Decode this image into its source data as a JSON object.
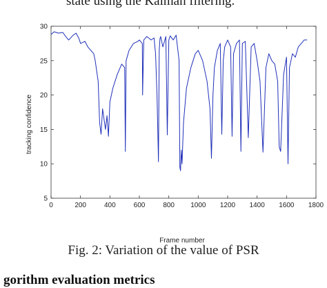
{
  "top_text": "state using the Kalman filtering.",
  "caption": "Fig. 2: Variation of the value of PSR",
  "bottom_text": "gorithm evaluation metrics",
  "chart_data": {
    "type": "line",
    "title": "",
    "xlabel": "Frame number",
    "ylabel": "tracking confidence",
    "xlim": [
      0,
      1800
    ],
    "ylim": [
      5,
      30
    ],
    "xticks": [
      0,
      200,
      400,
      600,
      800,
      1000,
      1200,
      1400,
      1600,
      1800
    ],
    "yticks": [
      5,
      10,
      15,
      20,
      25,
      30
    ],
    "line_color": "#1f2fb8",
    "series": [
      {
        "x": [
          0,
          20,
          50,
          80,
          100,
          120,
          150,
          170,
          190,
          200,
          230,
          250,
          270,
          290,
          300,
          320,
          330,
          340,
          350,
          360,
          370,
          380,
          390,
          400,
          420,
          450,
          480,
          500,
          505,
          510,
          530,
          560,
          590,
          600,
          620,
          622,
          630,
          650,
          680,
          700,
          710,
          720,
          730,
          735,
          740,
          745,
          760,
          780,
          790,
          800,
          810,
          830,
          850,
          870,
          875,
          880,
          885,
          890,
          900,
          920,
          950,
          980,
          1000,
          1030,
          1060,
          1080,
          1090,
          1100,
          1110,
          1130,
          1150,
          1160,
          1170,
          1180,
          1200,
          1220,
          1230,
          1240,
          1260,
          1280,
          1290,
          1300,
          1320,
          1340,
          1360,
          1380,
          1400,
          1420,
          1440,
          1460,
          1480,
          1500,
          1520,
          1540,
          1550,
          1560,
          1580,
          1600,
          1610,
          1620,
          1640,
          1660,
          1680,
          1700,
          1720,
          1740
        ],
        "y": [
          28.8,
          29.2,
          29.0,
          29.1,
          28.5,
          28.0,
          28.7,
          29.0,
          28.2,
          27.5,
          27.8,
          27.0,
          26.5,
          26.0,
          25.0,
          22.0,
          16.0,
          14.3,
          18.0,
          16.5,
          15.0,
          17.0,
          14.0,
          19.0,
          21.0,
          23.0,
          24.5,
          24.0,
          11.8,
          25.0,
          26.5,
          27.5,
          27.8,
          28.0,
          27.5,
          20.0,
          28.0,
          28.5,
          28.0,
          28.3,
          26.0,
          20.0,
          10.3,
          26.5,
          28.2,
          28.5,
          27.0,
          28.5,
          14.2,
          28.0,
          28.6,
          28.0,
          28.7,
          25.0,
          9.5,
          9.0,
          12.0,
          10.0,
          16.0,
          21.0,
          24.0,
          26.0,
          26.5,
          25.0,
          22.0,
          18.0,
          10.8,
          20.0,
          24.0,
          26.5,
          27.5,
          14.3,
          25.0,
          27.0,
          28.0,
          27.0,
          14.0,
          26.0,
          27.5,
          28.0,
          11.8,
          27.5,
          27.8,
          13.8,
          27.0,
          27.5,
          25.0,
          22.0,
          11.7,
          24.0,
          26.0,
          25.0,
          24.5,
          22.0,
          12.5,
          11.8,
          23.0,
          25.5,
          10.0,
          24.0,
          26.0,
          25.5,
          27.0,
          27.5,
          28.0,
          28.0
        ]
      }
    ]
  }
}
